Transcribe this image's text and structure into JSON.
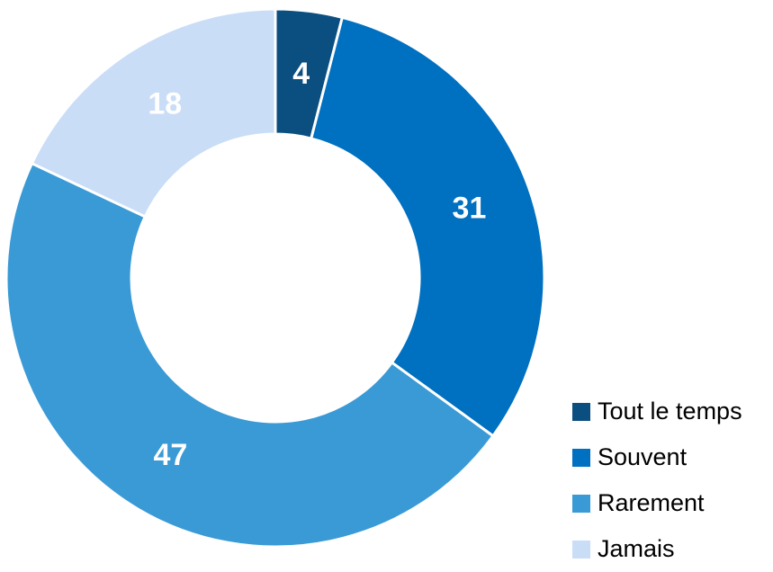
{
  "chart_data": {
    "type": "pie",
    "variant": "donut",
    "title": "",
    "categories": [
      "Tout le temps",
      "Souvent",
      "Rarement",
      "Jamais"
    ],
    "values": [
      4,
      31,
      47,
      18
    ],
    "colors": [
      "#0b4f80",
      "#0070c0",
      "#3a9ad6",
      "#c9ddf7"
    ],
    "label_colors": [
      "#ffffff",
      "#ffffff",
      "#ffffff",
      "#ffffff"
    ],
    "legend_position": "bottom-right"
  }
}
